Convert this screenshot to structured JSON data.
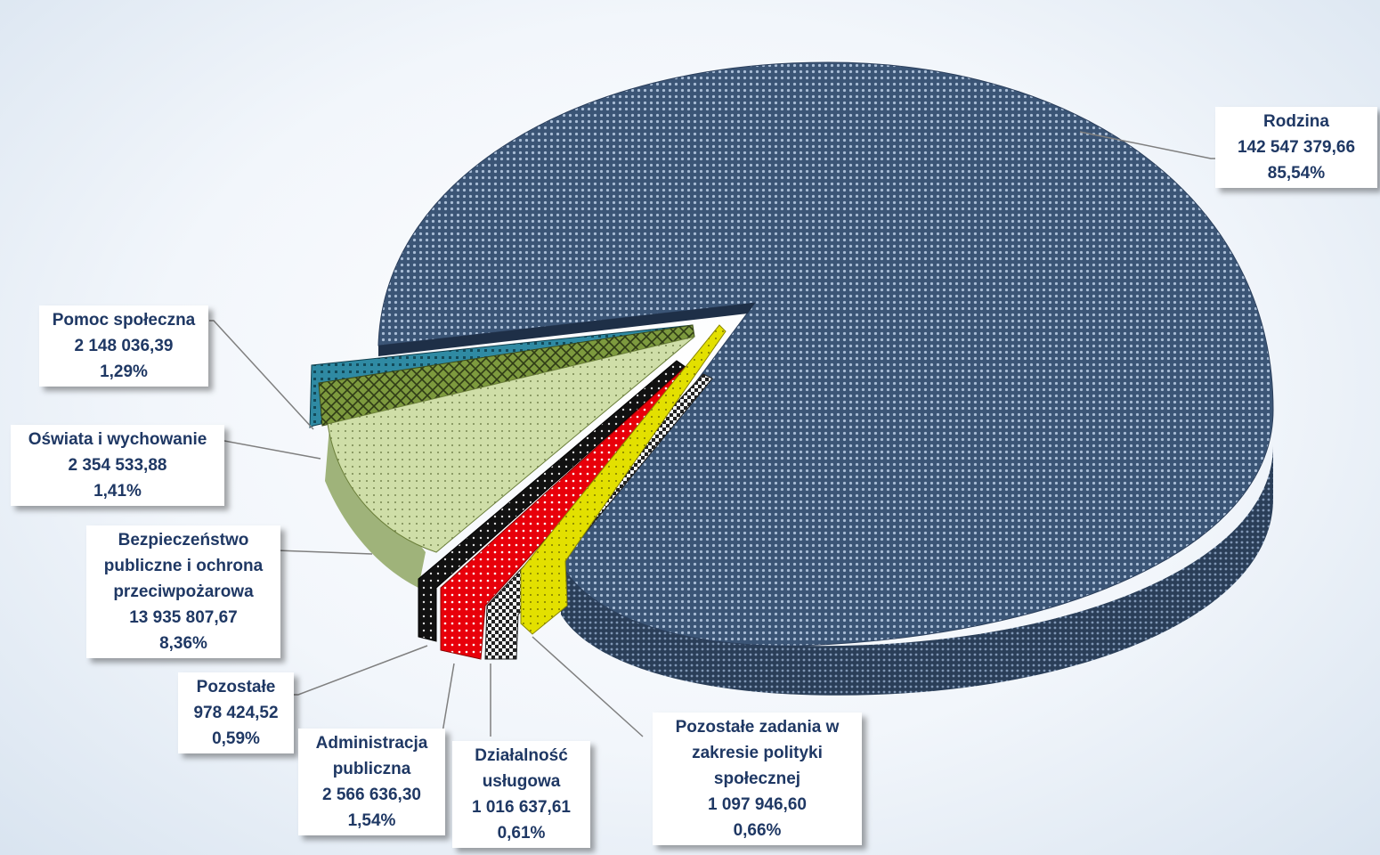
{
  "chart_data": {
    "type": "pie",
    "slices": [
      {
        "label": "Rodzina",
        "value": "142 547 379,66",
        "percent": "85,54%",
        "share": 85.54,
        "color": "#3a5478"
      },
      {
        "label": "Pozostałe zadania w zakresie polityki społecznej",
        "value": "1 097 946,60",
        "percent": "0,66%",
        "share": 0.66,
        "color": "#e3e000"
      },
      {
        "label": "Działalność usługowa",
        "value": "1 016 637,61",
        "percent": "0,61%",
        "share": 0.61,
        "color": "#555555"
      },
      {
        "label": "Administracja publiczna",
        "value": "2 566 636,30",
        "percent": "1,54%",
        "share": 1.54,
        "color": "#e8000a"
      },
      {
        "label": "Pozostałe",
        "value": "978 424,52",
        "percent": "0,59%",
        "share": 0.59,
        "color": "#111111"
      },
      {
        "label": "Bezpieczeństwo publiczne i ochrona przeciwpożarowa",
        "value": "13 935 807,67",
        "percent": "8,36%",
        "share": 8.36,
        "color": "#c4d79b"
      },
      {
        "label": "Oświata i wychowanie",
        "value": "2 354 533,88",
        "percent": "1,41%",
        "share": 1.41,
        "color": "#76933c"
      },
      {
        "label": "Pomoc społeczna",
        "value": "2 148 036,39",
        "percent": "1,29%",
        "share": 1.29,
        "color": "#31869b"
      }
    ],
    "labels": {
      "rodzina": "Rodzina\n142 547 379,66\n85,54%",
      "pomoc": "Pomoc społeczna\n2 148 036,39\n1,29%",
      "oswiata": "Oświata i wychowanie\n2 354 533,88\n1,41%",
      "bezp": "Bezpieczeństwo\npubliczne i ochrona\nprzeciwpożarowa\n13 935 807,67\n8,36%",
      "pozostale": "Pozostałe\n978 424,52\n0,59%",
      "admin": "Administracja\npubliczna\n2 566 636,30\n1,54%",
      "dzial": "Działalność\nusługowa\n1 016 637,61\n0,61%",
      "pozzad": "Pozostałe zadania w\nzakresie polityki\nspołecznej\n1 097 946,60\n0,66%"
    }
  }
}
